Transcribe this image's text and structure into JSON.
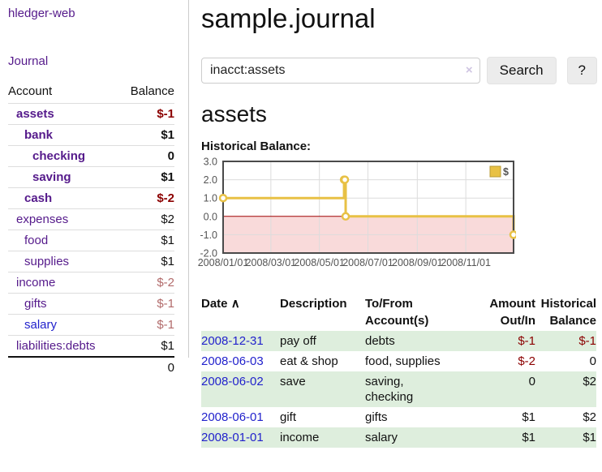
{
  "sidebar": {
    "app_title": "hledger-web",
    "journal_link": "Journal",
    "accounts_table": {
      "col_account": "Account",
      "col_balance": "Balance",
      "rows": [
        {
          "name": "assets",
          "indent": 1,
          "emphasized": true,
          "balance": "$-1",
          "link_color": "purple"
        },
        {
          "name": "bank",
          "indent": 2,
          "emphasized": true,
          "balance": "$1",
          "link_color": "purple"
        },
        {
          "name": "checking",
          "indent": 3,
          "emphasized": true,
          "balance": "0",
          "link_color": "purple"
        },
        {
          "name": "saving",
          "indent": 3,
          "emphasized": true,
          "balance": "$1",
          "link_color": "purple"
        },
        {
          "name": "cash",
          "indent": 2,
          "emphasized": true,
          "balance": "$-2",
          "link_color": "purple"
        },
        {
          "name": "expenses",
          "indent": 1,
          "emphasized": false,
          "balance": "$2",
          "link_color": "purple"
        },
        {
          "name": "food",
          "indent": 2,
          "emphasized": false,
          "balance": "$1",
          "link_color": "purple"
        },
        {
          "name": "supplies",
          "indent": 2,
          "emphasized": false,
          "balance": "$1",
          "link_color": "purple"
        },
        {
          "name": "income",
          "indent": 1,
          "emphasized": false,
          "balance": "$-2",
          "link_color": "purple"
        },
        {
          "name": "gifts",
          "indent": 2,
          "emphasized": false,
          "balance": "$-1",
          "link_color": "purple"
        },
        {
          "name": "salary",
          "indent": 2,
          "emphasized": false,
          "balance": "$-1",
          "link_color": "blue"
        },
        {
          "name": "liabilities:debts",
          "indent": 1,
          "emphasized": false,
          "balance": "$1",
          "link_color": "purple"
        }
      ],
      "total": "0"
    }
  },
  "main": {
    "title": "sample.journal",
    "search": {
      "value": "inacct:assets",
      "clear_icon": "×",
      "search_button": "Search",
      "help_button": "?"
    },
    "account_heading": "assets",
    "chart_label": "Historical Balance:",
    "register_table": {
      "headers": {
        "date": "Date",
        "sort_icon": "∧",
        "description": "Description",
        "accounts": "To/From\nAccount(s)",
        "amount": "Amount\nOut/In",
        "balance": "Historical\nBalance"
      },
      "rows": [
        {
          "date": "2008-12-31",
          "description": "pay off",
          "accounts": "debts",
          "amount": "$-1",
          "balance": "$-1"
        },
        {
          "date": "2008-06-03",
          "description": "eat & shop",
          "accounts": "food, supplies",
          "amount": "$-2",
          "balance": "0"
        },
        {
          "date": "2008-06-02",
          "description": "save",
          "accounts": "saving,\nchecking",
          "amount": "0",
          "balance": "$2"
        },
        {
          "date": "2008-06-01",
          "description": "gift",
          "accounts": "gifts",
          "amount": "$1",
          "balance": "$2"
        },
        {
          "date": "2008-01-01",
          "description": "income",
          "accounts": "salary",
          "amount": "$1",
          "balance": "$1"
        }
      ]
    }
  },
  "chart_data": {
    "type": "line",
    "step": true,
    "title": "Historical Balance:",
    "x_range": [
      "2008-01-01",
      "2008-12-31"
    ],
    "x_ticks": [
      "2008/01/01",
      "2008/03/01",
      "2008/05/01",
      "2008/07/01",
      "2008/09/01",
      "2008/11/01"
    ],
    "y_ticks": [
      "3.0",
      "2.0",
      "1.0",
      "0.0",
      "-1.0",
      "-2.0"
    ],
    "ylim": [
      -2,
      3
    ],
    "grid": true,
    "legend": {
      "label": "$",
      "position": "ne"
    },
    "series": [
      {
        "name": "$",
        "points": [
          [
            "2008-01-01",
            1
          ],
          [
            "2008-06-01",
            2
          ],
          [
            "2008-06-02",
            2
          ],
          [
            "2008-06-03",
            0
          ],
          [
            "2008-12-31",
            -1
          ]
        ]
      }
    ]
  },
  "colors": {
    "purple_link": "#551a8b",
    "blue_link": "#2222cc",
    "negative_strong": "#8b0000",
    "negative_muted": "#b26b6b",
    "stripe_green": "#deeedd",
    "chart_line": "#e8c145",
    "negative_region": "#f9dada",
    "zero_line": "#a00000",
    "chart_border": "#4a4a4a",
    "tick_text": "#545454"
  }
}
